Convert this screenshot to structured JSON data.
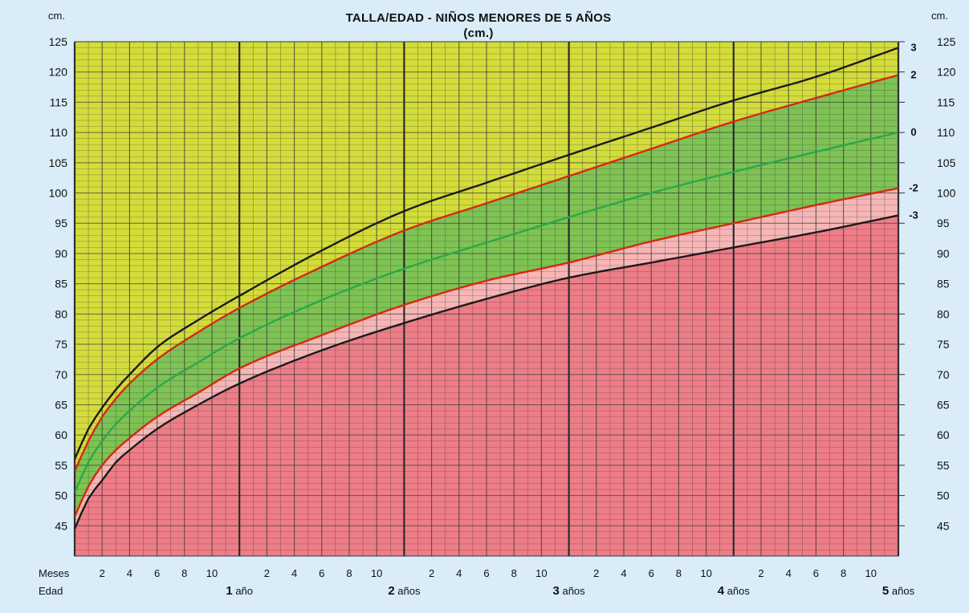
{
  "chart_data": {
    "type": "line",
    "title": "TALLA/EDAD - NIÑOS MENORES DE 5 AÑOS",
    "subtitle": "(cm.)",
    "ylabel_left": "cm.",
    "ylabel_right": "cm.",
    "ylim": [
      40,
      125
    ],
    "xlim_months": [
      0,
      60
    ],
    "y_ticks": [
      45,
      50,
      55,
      60,
      65,
      70,
      75,
      80,
      85,
      90,
      95,
      100,
      105,
      110,
      115,
      120,
      125
    ],
    "month_ticks": [
      "2",
      "4",
      "6",
      "8",
      "10"
    ],
    "meses_label": "Meses",
    "edad_label": "Edad",
    "age_labels": [
      {
        "num": "1",
        "unit": "año",
        "month": 12
      },
      {
        "num": "2",
        "unit": "años",
        "month": 24
      },
      {
        "num": "3",
        "unit": "años",
        "month": 36
      },
      {
        "num": "4",
        "unit": "años",
        "month": 48
      },
      {
        "num": "5",
        "unit": "años",
        "month": 60
      }
    ],
    "x_months": [
      0,
      1,
      2,
      3,
      4,
      6,
      9,
      12,
      18,
      24,
      30,
      36,
      42,
      48,
      54,
      60
    ],
    "series": [
      {
        "name": "3",
        "color": "#1a1a1a",
        "values": [
          56,
          61,
          64.5,
          67.5,
          70,
          74.5,
          79,
          83,
          90.5,
          97,
          101.7,
          106.3,
          110.8,
          115.3,
          119.2,
          124
        ]
      },
      {
        "name": "2",
        "color": "#d42a10",
        "values": [
          54,
          59,
          63,
          66,
          68.5,
          72.5,
          77,
          81,
          87.8,
          93.8,
          98.3,
          102.8,
          107.3,
          111.8,
          115.7,
          119.5
        ]
      },
      {
        "name": "0",
        "color": "#2aa84a",
        "values": [
          50.5,
          55.5,
          59,
          61.8,
          64,
          67.8,
          72,
          76,
          82.3,
          87.5,
          91.8,
          96,
          100,
          103.5,
          106.8,
          110
        ]
      },
      {
        "name": "-2",
        "color": "#d42a10",
        "values": [
          46.5,
          51.5,
          55,
          57.5,
          59.5,
          63,
          67,
          71,
          76.5,
          81.5,
          85.5,
          88.5,
          92,
          95,
          98,
          100.8
        ]
      },
      {
        "name": "-3",
        "color": "#1a1a1a",
        "values": [
          44.5,
          49.5,
          52.5,
          55.5,
          57.5,
          61,
          65,
          68.5,
          74,
          78.5,
          82.5,
          86,
          88.5,
          91,
          93.5,
          96.3
        ]
      }
    ],
    "zone_colors": {
      "above": "#d4dc3a",
      "normal": "#7ec353",
      "low": "#f7b6b6",
      "very_low": "#ee7d88"
    },
    "grid": true
  }
}
